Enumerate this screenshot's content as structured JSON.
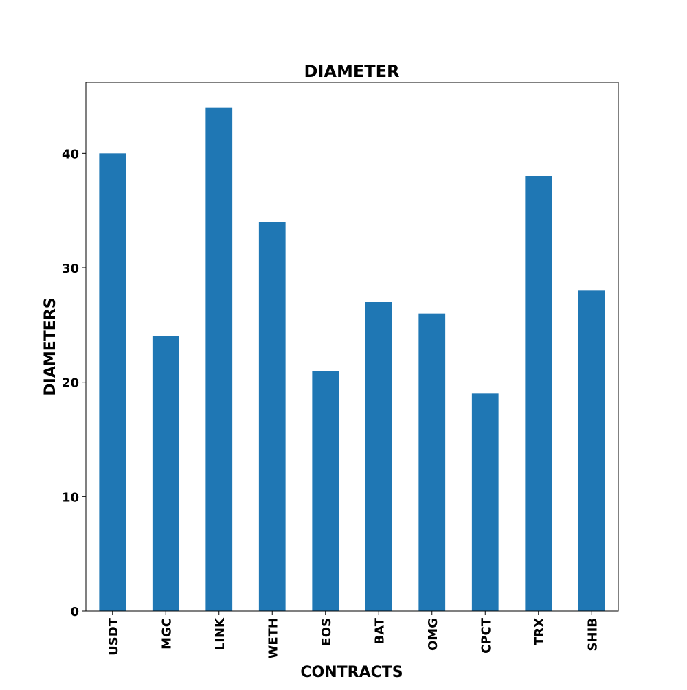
{
  "chart_data": {
    "type": "bar",
    "title": "DIAMETER",
    "xlabel": "CONTRACTS",
    "ylabel": "DIAMETERS",
    "categories": [
      "USDT",
      "MGC",
      "LINK",
      "WETH",
      "EOS",
      "BAT",
      "OMG",
      "CPCT",
      "TRX",
      "SHIB"
    ],
    "values": [
      40,
      24,
      44,
      34,
      21,
      27,
      26,
      19,
      38,
      28
    ],
    "ylim": [
      0,
      46.2
    ],
    "yticks": [
      0,
      10,
      20,
      30,
      40
    ],
    "bar_color": "#1f77b4",
    "grid": false,
    "legend": "none"
  }
}
